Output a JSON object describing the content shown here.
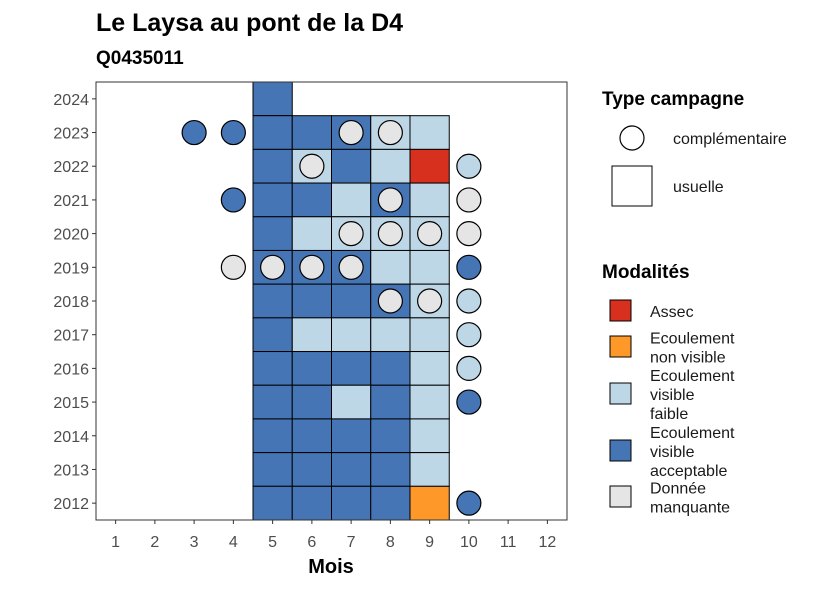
{
  "chart_data": {
    "type": "heatmap",
    "title": "Le Laysa au pont de la D4",
    "subtitle": "Q0435011",
    "xlabel": "Mois",
    "ylabel": "",
    "x_ticks": [
      "1",
      "2",
      "3",
      "4",
      "5",
      "6",
      "7",
      "8",
      "9",
      "10",
      "11",
      "12"
    ],
    "y_ticks": [
      "2012",
      "2013",
      "2014",
      "2015",
      "2016",
      "2017",
      "2018",
      "2019",
      "2020",
      "2021",
      "2022",
      "2023",
      "2024"
    ],
    "xlim": [
      0.5,
      12.5
    ],
    "ylim": [
      2011.5,
      2024.5
    ],
    "colors": {
      "Assec": "#d7301f",
      "Ecoulement non visible": "#fe9929",
      "Ecoulement visible faible": "#bdd7e7",
      "Ecoulement visible acceptable": "#4575b4",
      "Donnée manquante": "#e5e5e5"
    },
    "usuelle": [
      {
        "year": 2024,
        "month": 5,
        "modalite": "Ecoulement visible acceptable"
      },
      {
        "year": 2023,
        "month": 5,
        "modalite": "Ecoulement visible acceptable"
      },
      {
        "year": 2023,
        "month": 6,
        "modalite": "Ecoulement visible acceptable"
      },
      {
        "year": 2023,
        "month": 7,
        "modalite": "Ecoulement visible acceptable"
      },
      {
        "year": 2023,
        "month": 8,
        "modalite": "Ecoulement visible faible"
      },
      {
        "year": 2023,
        "month": 9,
        "modalite": "Ecoulement visible faible"
      },
      {
        "year": 2022,
        "month": 5,
        "modalite": "Ecoulement visible acceptable"
      },
      {
        "year": 2022,
        "month": 6,
        "modalite": "Ecoulement visible faible"
      },
      {
        "year": 2022,
        "month": 7,
        "modalite": "Ecoulement visible acceptable"
      },
      {
        "year": 2022,
        "month": 8,
        "modalite": "Ecoulement visible faible"
      },
      {
        "year": 2022,
        "month": 9,
        "modalite": "Assec"
      },
      {
        "year": 2021,
        "month": 5,
        "modalite": "Ecoulement visible acceptable"
      },
      {
        "year": 2021,
        "month": 6,
        "modalite": "Ecoulement visible acceptable"
      },
      {
        "year": 2021,
        "month": 7,
        "modalite": "Ecoulement visible faible"
      },
      {
        "year": 2021,
        "month": 8,
        "modalite": "Ecoulement visible acceptable"
      },
      {
        "year": 2021,
        "month": 9,
        "modalite": "Ecoulement visible faible"
      },
      {
        "year": 2020,
        "month": 5,
        "modalite": "Ecoulement visible acceptable"
      },
      {
        "year": 2020,
        "month": 6,
        "modalite": "Ecoulement visible faible"
      },
      {
        "year": 2020,
        "month": 7,
        "modalite": "Ecoulement visible faible"
      },
      {
        "year": 2020,
        "month": 8,
        "modalite": "Ecoulement visible faible"
      },
      {
        "year": 2020,
        "month": 9,
        "modalite": "Ecoulement visible faible"
      },
      {
        "year": 2019,
        "month": 5,
        "modalite": "Ecoulement visible acceptable"
      },
      {
        "year": 2019,
        "month": 6,
        "modalite": "Ecoulement visible acceptable"
      },
      {
        "year": 2019,
        "month": 7,
        "modalite": "Ecoulement visible acceptable"
      },
      {
        "year": 2019,
        "month": 8,
        "modalite": "Ecoulement visible faible"
      },
      {
        "year": 2019,
        "month": 9,
        "modalite": "Ecoulement visible faible"
      },
      {
        "year": 2018,
        "month": 5,
        "modalite": "Ecoulement visible acceptable"
      },
      {
        "year": 2018,
        "month": 6,
        "modalite": "Ecoulement visible acceptable"
      },
      {
        "year": 2018,
        "month": 7,
        "modalite": "Ecoulement visible acceptable"
      },
      {
        "year": 2018,
        "month": 8,
        "modalite": "Ecoulement visible acceptable"
      },
      {
        "year": 2018,
        "month": 9,
        "modalite": "Ecoulement visible faible"
      },
      {
        "year": 2017,
        "month": 5,
        "modalite": "Ecoulement visible acceptable"
      },
      {
        "year": 2017,
        "month": 6,
        "modalite": "Ecoulement visible faible"
      },
      {
        "year": 2017,
        "month": 7,
        "modalite": "Ecoulement visible faible"
      },
      {
        "year": 2017,
        "month": 8,
        "modalite": "Ecoulement visible faible"
      },
      {
        "year": 2017,
        "month": 9,
        "modalite": "Ecoulement visible faible"
      },
      {
        "year": 2016,
        "month": 5,
        "modalite": "Ecoulement visible acceptable"
      },
      {
        "year": 2016,
        "month": 6,
        "modalite": "Ecoulement visible acceptable"
      },
      {
        "year": 2016,
        "month": 7,
        "modalite": "Ecoulement visible acceptable"
      },
      {
        "year": 2016,
        "month": 8,
        "modalite": "Ecoulement visible acceptable"
      },
      {
        "year": 2016,
        "month": 9,
        "modalite": "Ecoulement visible faible"
      },
      {
        "year": 2015,
        "month": 5,
        "modalite": "Ecoulement visible acceptable"
      },
      {
        "year": 2015,
        "month": 6,
        "modalite": "Ecoulement visible acceptable"
      },
      {
        "year": 2015,
        "month": 7,
        "modalite": "Ecoulement visible faible"
      },
      {
        "year": 2015,
        "month": 8,
        "modalite": "Ecoulement visible acceptable"
      },
      {
        "year": 2015,
        "month": 9,
        "modalite": "Ecoulement visible faible"
      },
      {
        "year": 2014,
        "month": 5,
        "modalite": "Ecoulement visible acceptable"
      },
      {
        "year": 2014,
        "month": 6,
        "modalite": "Ecoulement visible acceptable"
      },
      {
        "year": 2014,
        "month": 7,
        "modalite": "Ecoulement visible acceptable"
      },
      {
        "year": 2014,
        "month": 8,
        "modalite": "Ecoulement visible acceptable"
      },
      {
        "year": 2014,
        "month": 9,
        "modalite": "Ecoulement visible faible"
      },
      {
        "year": 2013,
        "month": 5,
        "modalite": "Ecoulement visible acceptable"
      },
      {
        "year": 2013,
        "month": 6,
        "modalite": "Ecoulement visible acceptable"
      },
      {
        "year": 2013,
        "month": 7,
        "modalite": "Ecoulement visible acceptable"
      },
      {
        "year": 2013,
        "month": 8,
        "modalite": "Ecoulement visible acceptable"
      },
      {
        "year": 2013,
        "month": 9,
        "modalite": "Ecoulement visible faible"
      },
      {
        "year": 2012,
        "month": 5,
        "modalite": "Ecoulement visible acceptable"
      },
      {
        "year": 2012,
        "month": 6,
        "modalite": "Ecoulement visible acceptable"
      },
      {
        "year": 2012,
        "month": 7,
        "modalite": "Ecoulement visible acceptable"
      },
      {
        "year": 2012,
        "month": 8,
        "modalite": "Ecoulement visible acceptable"
      },
      {
        "year": 2012,
        "month": 9,
        "modalite": "Ecoulement non visible"
      }
    ],
    "complementaire": [
      {
        "year": 2023,
        "month": 3,
        "modalite": "Ecoulement visible acceptable"
      },
      {
        "year": 2023,
        "month": 4,
        "modalite": "Ecoulement visible acceptable"
      },
      {
        "year": 2023,
        "month": 7,
        "modalite": "Donnée manquante"
      },
      {
        "year": 2023,
        "month": 8,
        "modalite": "Donnée manquante"
      },
      {
        "year": 2022,
        "month": 6,
        "modalite": "Donnée manquante"
      },
      {
        "year": 2022,
        "month": 10,
        "modalite": "Ecoulement visible faible"
      },
      {
        "year": 2021,
        "month": 4,
        "modalite": "Ecoulement visible acceptable"
      },
      {
        "year": 2021,
        "month": 8,
        "modalite": "Donnée manquante"
      },
      {
        "year": 2021,
        "month": 10,
        "modalite": "Donnée manquante"
      },
      {
        "year": 2020,
        "month": 7,
        "modalite": "Donnée manquante"
      },
      {
        "year": 2020,
        "month": 8,
        "modalite": "Donnée manquante"
      },
      {
        "year": 2020,
        "month": 9,
        "modalite": "Donnée manquante"
      },
      {
        "year": 2020,
        "month": 10,
        "modalite": "Donnée manquante"
      },
      {
        "year": 2019,
        "month": 4,
        "modalite": "Donnée manquante"
      },
      {
        "year": 2019,
        "month": 5,
        "modalite": "Donnée manquante"
      },
      {
        "year": 2019,
        "month": 6,
        "modalite": "Donnée manquante"
      },
      {
        "year": 2019,
        "month": 7,
        "modalite": "Donnée manquante"
      },
      {
        "year": 2019,
        "month": 10,
        "modalite": "Ecoulement visible acceptable"
      },
      {
        "year": 2018,
        "month": 8,
        "modalite": "Donnée manquante"
      },
      {
        "year": 2018,
        "month": 9,
        "modalite": "Donnée manquante"
      },
      {
        "year": 2018,
        "month": 10,
        "modalite": "Ecoulement visible faible"
      },
      {
        "year": 2017,
        "month": 10,
        "modalite": "Ecoulement visible faible"
      },
      {
        "year": 2016,
        "month": 10,
        "modalite": "Ecoulement visible faible"
      },
      {
        "year": 2015,
        "month": 10,
        "modalite": "Ecoulement visible acceptable"
      },
      {
        "year": 2012,
        "month": 10,
        "modalite": "Ecoulement visible acceptable"
      }
    ],
    "legend": {
      "position": "right",
      "type_title": "Type campagne",
      "type_items": [
        {
          "shape": "circle",
          "label": "complémentaire"
        },
        {
          "shape": "square",
          "label": "usuelle"
        }
      ],
      "modalites_title": "Modalités",
      "modalite_items": [
        {
          "key": "Assec",
          "lines": [
            "Assec"
          ]
        },
        {
          "key": "Ecoulement non visible",
          "lines": [
            "Ecoulement",
            "non visible"
          ]
        },
        {
          "key": "Ecoulement visible faible",
          "lines": [
            "Ecoulement",
            "visible",
            "faible"
          ]
        },
        {
          "key": "Ecoulement visible acceptable",
          "lines": [
            "Ecoulement",
            "visible",
            "acceptable"
          ]
        },
        {
          "key": "Donnée manquante",
          "lines": [
            "Donnée",
            "manquante"
          ]
        }
      ]
    }
  }
}
